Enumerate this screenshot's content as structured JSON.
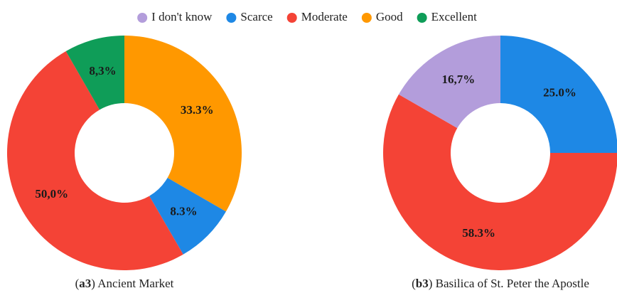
{
  "legend": [
    {
      "name": "I don't know",
      "color": "#b39ddb"
    },
    {
      "name": "Scarce",
      "color": "#1e88e5"
    },
    {
      "name": "Moderate",
      "color": "#f44336"
    },
    {
      "name": "Good",
      "color": "#ff9800"
    },
    {
      "name": "Excellent",
      "color": "#0f9d58"
    }
  ],
  "chart_data": [
    {
      "type": "donut",
      "label": "a3",
      "title": "Ancient Market",
      "categories": [
        "Good",
        "Scarce",
        "Moderate",
        "Excellent"
      ],
      "values": [
        33.3,
        8.3,
        50.0,
        8.3
      ],
      "value_labels": [
        "33.3%",
        "8.3%",
        "50,0%",
        "8,3%"
      ]
    },
    {
      "type": "donut",
      "label": "b3",
      "title": "Basilica of St. Peter the Apostle",
      "categories": [
        "Scarce",
        "Moderate",
        "I don't know"
      ],
      "values": [
        25.0,
        58.3,
        16.7
      ],
      "value_labels": [
        "25.0%",
        "58.3%",
        "16,7%"
      ]
    }
  ]
}
